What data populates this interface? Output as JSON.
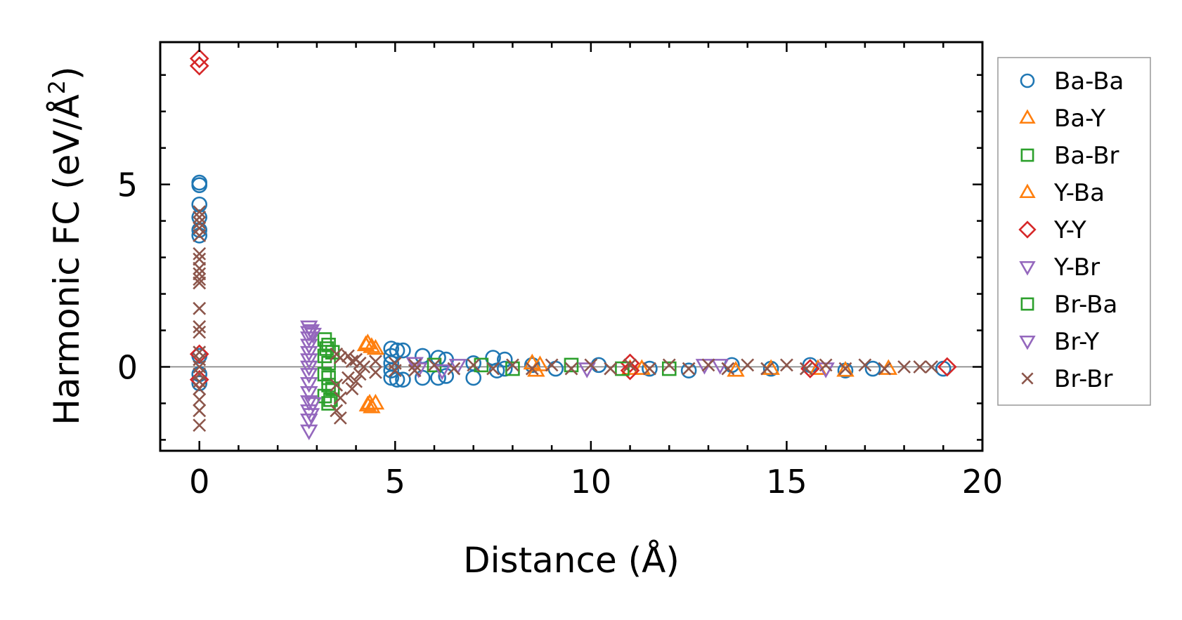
{
  "chart_data": {
    "type": "scatter",
    "xlabel": "Distance (Å)",
    "ylabel_main": "Harmonic FC (eV/Å",
    "ylabel_sup": "2",
    "ylabel_close": ")",
    "xlim": [
      -1,
      20
    ],
    "ylim": [
      -2.3,
      8.9
    ],
    "xticks": [
      0,
      5,
      10,
      15,
      20
    ],
    "yticks": [
      0,
      5
    ],
    "xtick_labels": [
      "0",
      "5",
      "10",
      "15",
      "20"
    ],
    "ytick_labels": [
      "0",
      "5"
    ],
    "zero_line": 0,
    "legend_position": "outside-right",
    "series": [
      {
        "name": "Ba-Ba",
        "marker": "circle",
        "color": "#1f77b4",
        "points": [
          [
            0,
            5.05
          ],
          [
            0,
            4.98
          ],
          [
            0,
            4.45
          ],
          [
            0,
            4.1
          ],
          [
            0,
            3.75
          ],
          [
            0,
            3.6
          ],
          [
            0,
            0.3
          ],
          [
            0,
            -0.2
          ],
          [
            0,
            -0.45
          ],
          [
            4.9,
            0.5
          ],
          [
            4.9,
            0.3
          ],
          [
            4.9,
            0.1
          ],
          [
            4.9,
            -0.1
          ],
          [
            4.9,
            -0.3
          ],
          [
            5.05,
            0.45
          ],
          [
            5.05,
            -0.35
          ],
          [
            5.2,
            0.45
          ],
          [
            5.2,
            -0.35
          ],
          [
            5.7,
            0.3
          ],
          [
            5.7,
            -0.3
          ],
          [
            6.1,
            0.25
          ],
          [
            6.1,
            -0.3
          ],
          [
            6.3,
            0.2
          ],
          [
            6.3,
            -0.25
          ],
          [
            7.0,
            0.1
          ],
          [
            7.0,
            -0.3
          ],
          [
            7.5,
            0.25
          ],
          [
            7.6,
            -0.1
          ],
          [
            7.8,
            0.2
          ],
          [
            7.8,
            -0.05
          ],
          [
            8.5,
            0.05
          ],
          [
            9.1,
            -0.05
          ],
          [
            10.2,
            0.05
          ],
          [
            11.5,
            -0.05
          ],
          [
            12.5,
            -0.1
          ],
          [
            13.6,
            0.05
          ],
          [
            14.6,
            -0.05
          ],
          [
            15.6,
            0.05
          ],
          [
            16.5,
            -0.1
          ],
          [
            17.2,
            -0.05
          ],
          [
            19.0,
            -0.05
          ]
        ]
      },
      {
        "name": "Ba-Y",
        "marker": "triangle-up",
        "color": "#ff7f0e",
        "points": [
          [
            4.3,
            0.65
          ],
          [
            4.4,
            0.55
          ],
          [
            4.3,
            -1.05
          ],
          [
            4.4,
            -1.1
          ],
          [
            4.5,
            0.5
          ],
          [
            4.5,
            -1.0
          ],
          [
            8.5,
            0.1
          ],
          [
            8.6,
            -0.1
          ],
          [
            11.3,
            -0.05
          ],
          [
            13.7,
            -0.1
          ],
          [
            14.6,
            -0.05
          ],
          [
            16.5,
            -0.1
          ],
          [
            17.6,
            -0.05
          ]
        ]
      },
      {
        "name": "Ba-Br",
        "marker": "square",
        "color": "#2ca02c",
        "points": [
          [
            3.2,
            0.75
          ],
          [
            3.3,
            0.6
          ],
          [
            3.2,
            0.3
          ],
          [
            3.3,
            0.1
          ],
          [
            3.2,
            -0.2
          ],
          [
            3.3,
            -0.5
          ],
          [
            3.2,
            -0.8
          ],
          [
            3.3,
            -1.0
          ],
          [
            3.4,
            0.4
          ],
          [
            3.4,
            -0.6
          ],
          [
            6.0,
            0.05
          ],
          [
            8.0,
            -0.05
          ],
          [
            9.5,
            0.05
          ],
          [
            12.0,
            -0.05
          ]
        ]
      },
      {
        "name": "Y-Ba",
        "marker": "triangle-up",
        "color": "#ff7f0e",
        "points": [
          [
            4.25,
            0.6
          ],
          [
            4.35,
            -1.0
          ],
          [
            8.7,
            0.05
          ],
          [
            11.0,
            -0.05
          ],
          [
            15.8,
            -0.05
          ]
        ]
      },
      {
        "name": "Y-Y",
        "marker": "diamond",
        "color": "#d62728",
        "points": [
          [
            0,
            8.45
          ],
          [
            0,
            8.25
          ],
          [
            0,
            0.35
          ],
          [
            0,
            -0.35
          ],
          [
            11.0,
            0.1
          ],
          [
            11.0,
            -0.1
          ],
          [
            15.6,
            -0.05
          ],
          [
            19.1,
            0.0
          ]
        ]
      },
      {
        "name": "Y-Br",
        "marker": "triangle-down",
        "color": "#9467bd",
        "points": [
          [
            2.8,
            1.1
          ],
          [
            2.8,
            0.95
          ],
          [
            2.8,
            0.8
          ],
          [
            2.8,
            0.6
          ],
          [
            2.8,
            0.4
          ],
          [
            2.8,
            0.2
          ],
          [
            2.8,
            0.0
          ],
          [
            2.8,
            -0.2
          ],
          [
            2.8,
            -0.45
          ],
          [
            2.8,
            -0.7
          ],
          [
            2.8,
            -0.95
          ],
          [
            2.8,
            -1.2
          ],
          [
            2.8,
            -1.45
          ],
          [
            2.8,
            -1.75
          ],
          [
            2.9,
            0.9
          ],
          [
            2.9,
            -1.0
          ],
          [
            5.5,
            0.1
          ],
          [
            6.2,
            -0.1
          ],
          [
            6.6,
            0.05
          ],
          [
            9.9,
            -0.05
          ],
          [
            13.3,
            0.05
          ],
          [
            16.0,
            -0.05
          ]
        ]
      },
      {
        "name": "Br-Ba",
        "marker": "square",
        "color": "#2ca02c",
        "points": [
          [
            3.25,
            0.5
          ],
          [
            3.3,
            -0.3
          ],
          [
            3.35,
            -0.9
          ],
          [
            7.2,
            0.05
          ],
          [
            10.8,
            -0.05
          ]
        ]
      },
      {
        "name": "Br-Y",
        "marker": "triangle-down",
        "color": "#9467bd",
        "points": [
          [
            2.85,
            1.0
          ],
          [
            2.85,
            -1.3
          ],
          [
            5.6,
            -0.05
          ],
          [
            12.9,
            0.05
          ]
        ]
      },
      {
        "name": "Br-Br",
        "marker": "x",
        "color": "#8c564b",
        "points": [
          [
            0,
            4.25
          ],
          [
            0,
            4.1
          ],
          [
            0,
            3.95
          ],
          [
            0,
            3.8
          ],
          [
            0,
            3.6
          ],
          [
            0,
            3.1
          ],
          [
            0,
            2.95
          ],
          [
            0,
            2.7
          ],
          [
            0,
            2.55
          ],
          [
            0,
            2.4
          ],
          [
            0,
            2.3
          ],
          [
            0,
            1.6
          ],
          [
            0,
            1.1
          ],
          [
            0,
            0.95
          ],
          [
            0,
            0.4
          ],
          [
            0,
            0.2
          ],
          [
            0,
            0.0
          ],
          [
            0,
            -0.2
          ],
          [
            0,
            -0.4
          ],
          [
            0,
            -0.6
          ],
          [
            0,
            -0.9
          ],
          [
            0,
            -1.2
          ],
          [
            0,
            -1.6
          ],
          [
            3.5,
            0.35
          ],
          [
            3.6,
            0.25
          ],
          [
            3.5,
            -0.5
          ],
          [
            3.6,
            -0.85
          ],
          [
            3.5,
            -1.2
          ],
          [
            3.6,
            -1.4
          ],
          [
            3.8,
            0.3
          ],
          [
            3.8,
            -0.3
          ],
          [
            3.9,
            0.15
          ],
          [
            3.9,
            -0.6
          ],
          [
            4.0,
            0.2
          ],
          [
            4.0,
            -0.4
          ],
          [
            4.1,
            0.1
          ],
          [
            4.1,
            -0.2
          ],
          [
            4.2,
            0.0
          ],
          [
            4.5,
            0.15
          ],
          [
            4.5,
            -0.15
          ],
          [
            5.0,
            0.1
          ],
          [
            5.0,
            -0.1
          ],
          [
            5.5,
            0.05
          ],
          [
            5.5,
            -0.1
          ],
          [
            6.0,
            0.05
          ],
          [
            6.5,
            -0.05
          ],
          [
            7.0,
            0.05
          ],
          [
            7.5,
            -0.05
          ],
          [
            8.0,
            0.05
          ],
          [
            8.5,
            -0.05
          ],
          [
            9.0,
            0.05
          ],
          [
            9.5,
            -0.05
          ],
          [
            10.0,
            0.05
          ],
          [
            10.5,
            -0.05
          ],
          [
            11.0,
            0.05
          ],
          [
            11.5,
            -0.05
          ],
          [
            12.0,
            0.05
          ],
          [
            12.5,
            -0.05
          ],
          [
            13.0,
            0.05
          ],
          [
            13.5,
            -0.05
          ],
          [
            14.0,
            0.05
          ],
          [
            14.5,
            -0.05
          ],
          [
            15.0,
            0.05
          ],
          [
            15.5,
            -0.05
          ],
          [
            16.0,
            0.05
          ],
          [
            16.5,
            -0.05
          ],
          [
            17.0,
            0.05
          ],
          [
            17.5,
            -0.05
          ],
          [
            18.0,
            0.0
          ],
          [
            18.4,
            0.0
          ],
          [
            18.7,
            0.0
          ]
        ]
      }
    ]
  }
}
